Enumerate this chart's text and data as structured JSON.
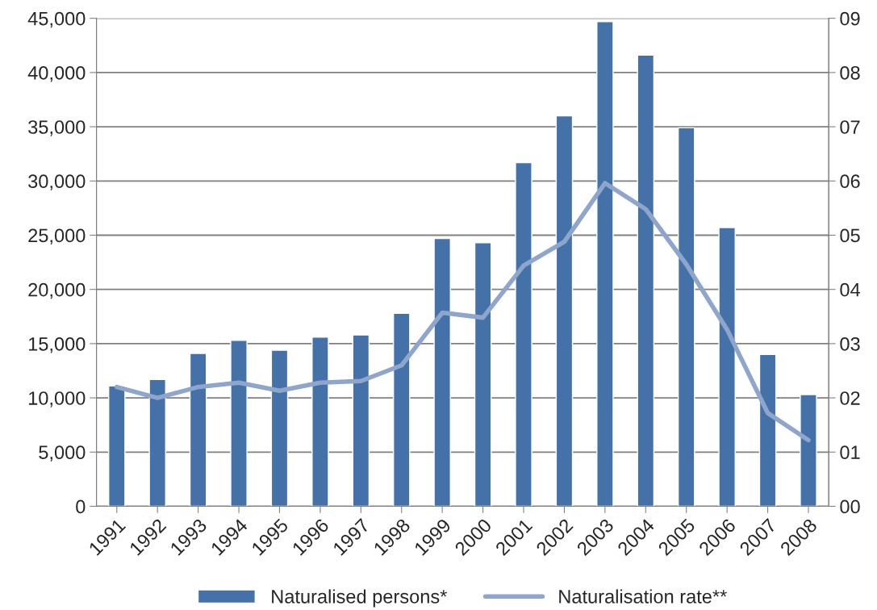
{
  "chart_data": {
    "type": "bar",
    "categories": [
      "1991",
      "1992",
      "1993",
      "1994",
      "1995",
      "1996",
      "1997",
      "1998",
      "1999",
      "2000",
      "2001",
      "2002",
      "2003",
      "2004",
      "2005",
      "2006",
      "2007",
      "2008"
    ],
    "series": [
      {
        "name": "Naturalised persons*",
        "color": "#4472a8",
        "values": [
          11100,
          11700,
          14100,
          15300,
          14400,
          15600,
          15800,
          17800,
          24700,
          24300,
          31700,
          36000,
          44700,
          41600,
          34900,
          25700,
          14000,
          10300
        ]
      },
      {
        "name": "Naturalisation rate**",
        "type": "line",
        "axis": "y2",
        "color": "#8ea6cc",
        "values": [
          2.2,
          2.0,
          2.2,
          2.28,
          2.13,
          2.28,
          2.31,
          2.6,
          3.57,
          3.48,
          4.44,
          4.88,
          5.96,
          5.48,
          4.46,
          3.26,
          1.72,
          1.22
        ]
      }
    ],
    "ylim": [
      0,
      45000
    ],
    "yticks": [
      {
        "value": 0,
        "label": "0"
      },
      {
        "value": 5000,
        "label": "5,000"
      },
      {
        "value": 10000,
        "label": "10,000"
      },
      {
        "value": 15000,
        "label": "15,000"
      },
      {
        "value": 20000,
        "label": "20,000"
      },
      {
        "value": 25000,
        "label": "25,000"
      },
      {
        "value": 30000,
        "label": "30,000"
      },
      {
        "value": 35000,
        "label": "35,000"
      },
      {
        "value": 40000,
        "label": "40,000"
      },
      {
        "value": 45000,
        "label": "45,000"
      }
    ],
    "y2lim": [
      0,
      9
    ],
    "y2ticks": [
      {
        "value": 0,
        "label": "00"
      },
      {
        "value": 1,
        "label": "01"
      },
      {
        "value": 2,
        "label": "02"
      },
      {
        "value": 3,
        "label": "03"
      },
      {
        "value": 4,
        "label": "04"
      },
      {
        "value": 5,
        "label": "05"
      },
      {
        "value": 6,
        "label": "06"
      },
      {
        "value": 7,
        "label": "07"
      },
      {
        "value": 8,
        "label": "08"
      },
      {
        "value": 9,
        "label": "09"
      }
    ],
    "grid": "y",
    "legend": "bottom",
    "line_style": "solid",
    "marker": "none"
  }
}
